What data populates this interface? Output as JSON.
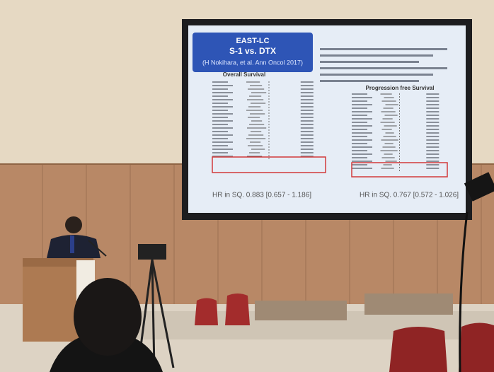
{
  "slide": {
    "title": "EAST-LC",
    "subtitle": "S-1 vs. DTX",
    "citation": "(H Nokihara, et al. Ann Oncol 2017)",
    "left_plot": {
      "heading": "Overall Survival",
      "result": "HR in SQ. 0.883 [0.657 - 1.186]"
    },
    "right_plot": {
      "heading": "Progression free Survival",
      "result": "HR in SQ. 0.767 [0.572 - 1.026]"
    }
  }
}
